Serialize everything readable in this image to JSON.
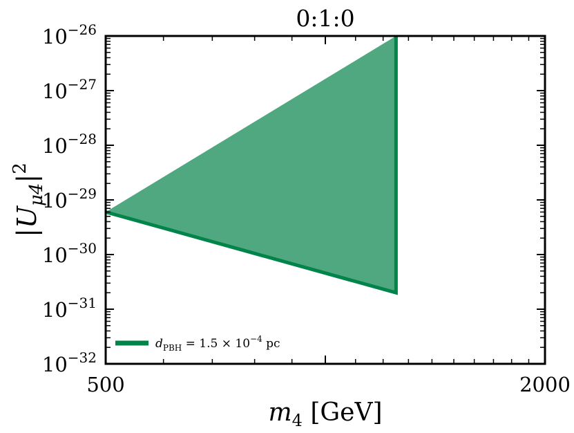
{
  "chart_data": {
    "type": "area",
    "title": "0:1:0",
    "xlabel": "m_4 [GeV]",
    "xlabel_base": "m",
    "xlabel_sub": "4",
    "xlabel_unit": " [GeV]",
    "ylabel": "|U_μ4|^2",
    "ylabel_main": "|U",
    "ylabel_sub": "μ4",
    "ylabel_close": "|",
    "ylabel_sup": "2",
    "xscale": "log",
    "yscale": "log",
    "xlim": [
      500,
      2000
    ],
    "ylim": [
      1e-32,
      1e-26
    ],
    "x_ticks": [
      {
        "value": 500,
        "label": "500"
      },
      {
        "value": 2000,
        "label": "2000"
      }
    ],
    "y_ticks": [
      {
        "value": -26,
        "base": "10",
        "exp": "−26"
      },
      {
        "value": -27,
        "base": "10",
        "exp": "−27"
      },
      {
        "value": -28,
        "base": "10",
        "exp": "−28"
      },
      {
        "value": -29,
        "base": "10",
        "exp": "−29"
      },
      {
        "value": -30,
        "base": "10",
        "exp": "−30"
      },
      {
        "value": -31,
        "base": "10",
        "exp": "−31"
      },
      {
        "value": -32,
        "base": "10",
        "exp": "−32"
      }
    ],
    "series": [
      {
        "name": "d_PBH = 1.5 × 10^-4 pc",
        "color": "#00844a",
        "fill_color": "#4fa87f",
        "x": [
          500,
          1250,
          1250,
          1250
        ],
        "y": [
          6e-30,
          2e-31,
          1e-26,
          1e-26
        ]
      }
    ],
    "legend": {
      "placement": "lower-left",
      "label_base": "d",
      "label_sub": "PBH",
      "label_mid": " = 1.5 × 10",
      "label_sup": "−4",
      "label_end": " pc"
    },
    "grid": false
  }
}
